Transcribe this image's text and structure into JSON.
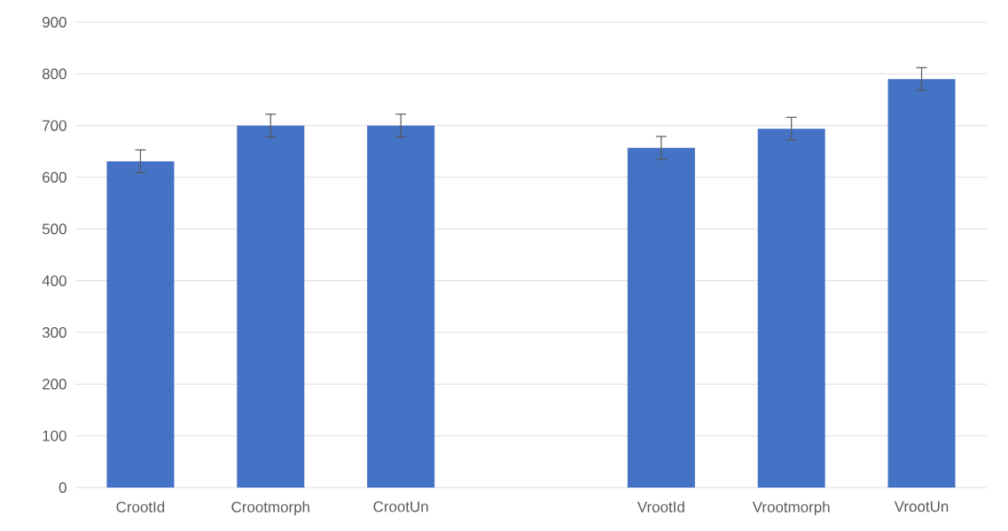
{
  "chart_data": {
    "type": "bar",
    "categories": [
      "CrootId",
      "Crootmorph",
      "CrootUn",
      null,
      "VrootId",
      "Vrootmorph",
      "VrootUn"
    ],
    "values": [
      631,
      700,
      700,
      null,
      657,
      694,
      790
    ],
    "errors": [
      22,
      22,
      22,
      null,
      22,
      22,
      22
    ],
    "color": "#4472c4",
    "ylim": [
      0,
      900
    ],
    "yticks": [
      0,
      100,
      200,
      300,
      400,
      500,
      600,
      700,
      800,
      900
    ],
    "grid": "y"
  }
}
